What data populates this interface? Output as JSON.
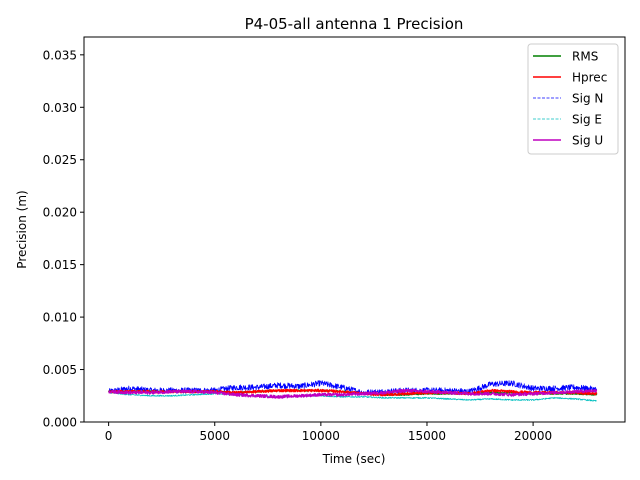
{
  "chart_data": {
    "type": "line",
    "title": "P4-05-all antenna 1 Precision",
    "xlabel": "Time (sec)",
    "ylabel": "Precision (m)",
    "xlim": [
      -1160,
      24330
    ],
    "ylim": [
      0,
      0.0367
    ],
    "xticks": [
      0,
      5000,
      10000,
      15000,
      20000
    ],
    "xtick_labels": [
      "0",
      "5000",
      "10000",
      "15000",
      "20000"
    ],
    "yticks": [
      0.0,
      0.005,
      0.01,
      0.015,
      0.02,
      0.025,
      0.03,
      0.035
    ],
    "ytick_labels": [
      "0.000",
      "0.005",
      "0.010",
      "0.015",
      "0.020",
      "0.025",
      "0.030",
      "0.035"
    ],
    "grid": false,
    "legend_position": "top-right",
    "series": [
      {
        "name": "RMS",
        "color": "#008000",
        "style": "solid",
        "x": [
          0,
          1000,
          2000,
          3000,
          4000,
          5000,
          6000,
          7000,
          8000,
          9000,
          10000,
          11000,
          12000,
          13000,
          14000,
          15000,
          16000,
          17000,
          18000,
          19000,
          20000,
          21000,
          22000,
          23000
        ],
        "values": [
          0.0029,
          0.0029,
          0.0029,
          0.0029,
          0.0029,
          0.0029,
          0.0028,
          0.0029,
          0.003,
          0.003,
          0.003,
          0.0029,
          0.0027,
          0.0026,
          0.0026,
          0.0027,
          0.0027,
          0.0027,
          0.0028,
          0.0028,
          0.0027,
          0.0027,
          0.0027,
          0.0026
        ]
      },
      {
        "name": "Hprec",
        "color": "#ff0000",
        "style": "solid",
        "x": [
          0,
          1000,
          2000,
          3000,
          4000,
          5000,
          6000,
          7000,
          8000,
          9000,
          10000,
          11000,
          12000,
          13000,
          14000,
          15000,
          16000,
          17000,
          18000,
          19000,
          20000,
          21000,
          22000,
          23000
        ],
        "values": [
          0.0029,
          0.0029,
          0.0029,
          0.0029,
          0.0029,
          0.0029,
          0.0028,
          0.0029,
          0.003,
          0.003,
          0.003,
          0.0029,
          0.0027,
          0.0026,
          0.0027,
          0.0028,
          0.0028,
          0.0027,
          0.003,
          0.0029,
          0.0028,
          0.0028,
          0.0028,
          0.0027
        ]
      },
      {
        "name": "Sig N",
        "color": "#0000ff",
        "style": "dashed",
        "x": [
          0,
          1000,
          2000,
          3000,
          4000,
          5000,
          6000,
          7000,
          8000,
          9000,
          10000,
          11000,
          12000,
          13000,
          14000,
          15000,
          16000,
          17000,
          18000,
          19000,
          20000,
          21000,
          22000,
          23000
        ],
        "values": [
          0.0029,
          0.0032,
          0.003,
          0.003,
          0.003,
          0.003,
          0.0033,
          0.0033,
          0.0035,
          0.0034,
          0.0037,
          0.0033,
          0.0028,
          0.0029,
          0.003,
          0.003,
          0.003,
          0.0029,
          0.0036,
          0.0037,
          0.0032,
          0.0032,
          0.0033,
          0.0031
        ]
      },
      {
        "name": "Sig E",
        "color": "#00bfbf",
        "style": "dashed",
        "x": [
          0,
          1000,
          2000,
          3000,
          4000,
          5000,
          6000,
          7000,
          8000,
          9000,
          10000,
          11000,
          12000,
          13000,
          14000,
          15000,
          16000,
          17000,
          18000,
          19000,
          20000,
          21000,
          22000,
          23000
        ],
        "values": [
          0.0028,
          0.0026,
          0.0025,
          0.0025,
          0.0026,
          0.0027,
          0.0026,
          0.0025,
          0.0024,
          0.0025,
          0.0025,
          0.0024,
          0.0024,
          0.0023,
          0.0023,
          0.0023,
          0.0022,
          0.0021,
          0.0022,
          0.0021,
          0.0021,
          0.0023,
          0.0022,
          0.002
        ]
      },
      {
        "name": "Sig U",
        "color": "#bf00bf",
        "style": "solid",
        "x": [
          0,
          1000,
          2000,
          3000,
          4000,
          5000,
          6000,
          7000,
          8000,
          9000,
          10000,
          11000,
          12000,
          13000,
          14000,
          15000,
          16000,
          17000,
          18000,
          19000,
          20000,
          21000,
          22000,
          23000
        ],
        "values": [
          0.0029,
          0.0028,
          0.0028,
          0.0029,
          0.0029,
          0.0028,
          0.0026,
          0.0025,
          0.0024,
          0.0025,
          0.0026,
          0.0026,
          0.0027,
          0.0028,
          0.003,
          0.0029,
          0.0028,
          0.0027,
          0.0027,
          0.0026,
          0.0027,
          0.0028,
          0.0029,
          0.003
        ]
      }
    ]
  }
}
